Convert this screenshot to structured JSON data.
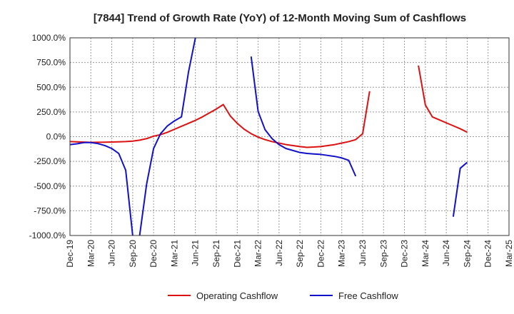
{
  "chart_data": {
    "type": "line",
    "title": "[7844]  Trend of Growth Rate (YoY) of 12-Month Moving Sum of Cashflows",
    "xlabel": "",
    "ylabel": "",
    "x_ticks": [
      "Dec-19",
      "Mar-20",
      "Jun-20",
      "Sep-20",
      "Dec-20",
      "Mar-21",
      "Jun-21",
      "Sep-21",
      "Dec-21",
      "Mar-22",
      "Jun-22",
      "Sep-22",
      "Dec-22",
      "Mar-23",
      "Jun-23",
      "Sep-23",
      "Dec-23",
      "Mar-24",
      "Jun-24",
      "Sep-24",
      "Dec-24",
      "Mar-25"
    ],
    "y_ticks": [
      "1000.0%",
      "750.0%",
      "500.0%",
      "250.0%",
      "0.0%",
      "-250.0%",
      "-500.0%",
      "-750.0%",
      "-1000.0%"
    ],
    "ylim": [
      -1000,
      1000
    ],
    "y_unit": "%",
    "grid": true,
    "legend_position": "bottom",
    "series": [
      {
        "name": "Operating Cashflow",
        "color": "#dd1111",
        "points": [
          [
            "Dec-19",
            -50
          ],
          [
            "Jan-20",
            -52
          ],
          [
            "Feb-20",
            -55
          ],
          [
            "Mar-20",
            -58
          ],
          [
            "Apr-20",
            -57
          ],
          [
            "May-20",
            -56
          ],
          [
            "Jun-20",
            -54
          ],
          [
            "Jul-20",
            -52
          ],
          [
            "Aug-20",
            -50
          ],
          [
            "Sep-20",
            -45
          ],
          [
            "Oct-20",
            -35
          ],
          [
            "Nov-20",
            -20
          ],
          [
            "Dec-20",
            5
          ],
          [
            "Jan-21",
            20
          ],
          [
            "Feb-21",
            45
          ],
          [
            "Mar-21",
            75
          ],
          [
            "Apr-21",
            105
          ],
          [
            "May-21",
            135
          ],
          [
            "Jun-21",
            165
          ],
          [
            "Jul-21",
            200
          ],
          [
            "Aug-21",
            240
          ],
          [
            "Sep-21",
            280
          ],
          [
            "Oct-21",
            325
          ],
          [
            "Nov-21",
            210
          ],
          [
            "Dec-21",
            135
          ],
          [
            "Jan-22",
            75
          ],
          [
            "Feb-22",
            30
          ],
          [
            "Mar-22",
            -5
          ],
          [
            "Apr-22",
            -30
          ],
          [
            "May-22",
            -50
          ],
          [
            "Jun-22",
            -65
          ],
          [
            "Jul-22",
            -80
          ],
          [
            "Aug-22",
            -90
          ],
          [
            "Sep-22",
            -100
          ],
          [
            "Oct-22",
            -108
          ],
          [
            "Nov-22",
            -105
          ],
          [
            "Dec-22",
            -100
          ],
          [
            "Jan-23",
            -90
          ],
          [
            "Feb-23",
            -80
          ],
          [
            "Mar-23",
            -65
          ],
          [
            "Apr-23",
            -50
          ],
          [
            "May-23",
            -30
          ],
          [
            "Jun-23",
            30
          ],
          [
            "Jul-23",
            460
          ],
          null,
          [
            "Feb-24",
            720
          ],
          [
            "Mar-24",
            320
          ],
          [
            "Apr-24",
            200
          ],
          [
            "May-24",
            170
          ],
          [
            "Jun-24",
            140
          ],
          [
            "Jul-24",
            110
          ],
          [
            "Aug-24",
            80
          ],
          [
            "Sep-24",
            45
          ]
        ]
      },
      {
        "name": "Free Cashflow",
        "color": "#1111cc",
        "points": [
          [
            "Dec-19",
            -80
          ],
          [
            "Jan-20",
            -72
          ],
          [
            "Feb-20",
            -60
          ],
          [
            "Mar-20",
            -60
          ],
          [
            "Apr-20",
            -70
          ],
          [
            "May-20",
            -90
          ],
          [
            "Jun-20",
            -120
          ],
          [
            "Jul-20",
            -170
          ],
          [
            "Aug-20",
            -340
          ],
          [
            "Sep-20",
            -1000
          ],
          null,
          [
            "Oct-20",
            -1000
          ],
          [
            "Nov-20",
            -480
          ],
          [
            "Dec-20",
            -120
          ],
          [
            "Jan-21",
            30
          ],
          [
            "Feb-21",
            110
          ],
          [
            "Mar-21",
            160
          ],
          [
            "Apr-21",
            200
          ],
          [
            "May-21",
            650
          ],
          [
            "Jun-21",
            1000
          ],
          null,
          [
            "Feb-22",
            810
          ],
          [
            "Mar-22",
            255
          ],
          [
            "Apr-22",
            70
          ],
          [
            "May-22",
            -20
          ],
          [
            "Jun-22",
            -80
          ],
          [
            "Jul-22",
            -120
          ],
          [
            "Aug-22",
            -140
          ],
          [
            "Sep-22",
            -160
          ],
          [
            "Oct-22",
            -170
          ],
          [
            "Nov-22",
            -175
          ],
          [
            "Dec-22",
            -180
          ],
          [
            "Jan-23",
            -190
          ],
          [
            "Feb-23",
            -200
          ],
          [
            "Mar-23",
            -215
          ],
          [
            "Apr-23",
            -240
          ],
          [
            "May-23",
            -400
          ],
          null,
          [
            "Jul-24",
            -810
          ],
          [
            "Aug-24",
            -320
          ],
          [
            "Sep-24",
            -260
          ]
        ]
      }
    ]
  }
}
